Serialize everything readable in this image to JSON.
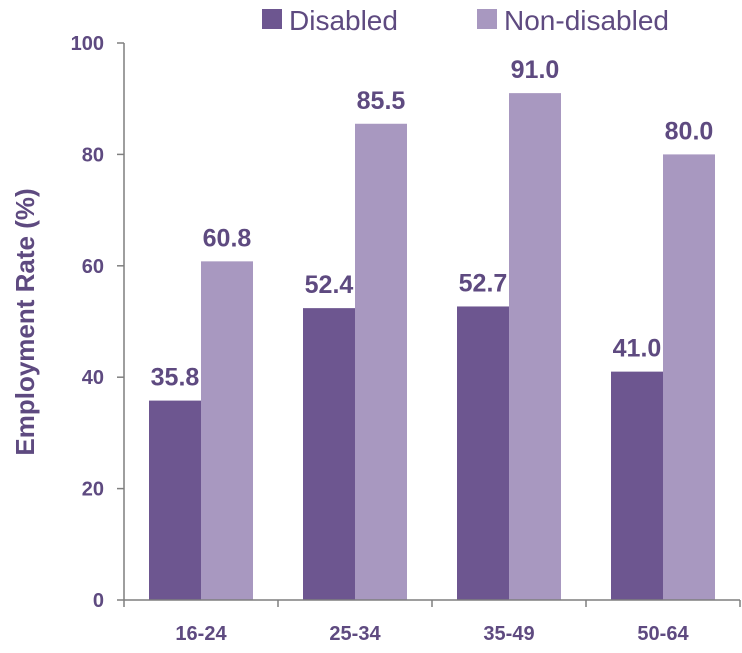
{
  "chart_data": {
    "type": "bar",
    "title": "",
    "xlabel": "",
    "ylabel": "Employment Rate (%)",
    "categories": [
      "16-24",
      "25-34",
      "35-49",
      "50-64"
    ],
    "series": [
      {
        "name": "Disabled",
        "values": [
          35.8,
          52.4,
          52.7,
          41.0
        ],
        "labels": [
          "35.8",
          "52.4",
          "52.7",
          "41.0"
        ],
        "color": "#6d5690"
      },
      {
        "name": "Non-disabled",
        "values": [
          60.8,
          85.5,
          91.0,
          80.0
        ],
        "labels": [
          "60.8",
          "85.5",
          "91.0",
          "80.0"
        ],
        "color": "#a898c0"
      }
    ],
    "ylim": [
      0,
      100
    ],
    "yticks": [
      "0",
      "20",
      "40",
      "60",
      "80",
      "100"
    ],
    "legend_position": "top",
    "grid": false,
    "text_color": "#5e4a80",
    "axis_color": "#7f7f7f"
  }
}
